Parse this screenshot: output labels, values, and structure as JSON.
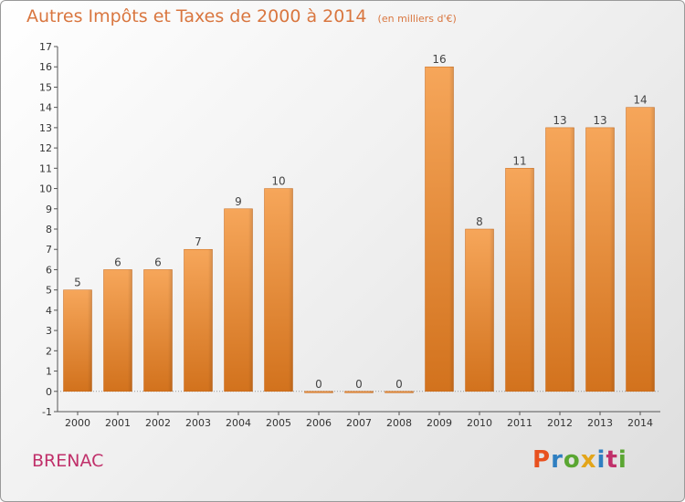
{
  "header": {
    "title": "Autres Impôts et Taxes de 2000 à 2014",
    "unit": "(en milliers d'€)"
  },
  "footer": {
    "commune": "BRENAC",
    "brand": "Proxiti"
  },
  "colors": {
    "title": "#d9763f",
    "commune": "#c0306a",
    "bar_top": "#f6a65a",
    "bar_bottom": "#d2721d",
    "brand_letters": [
      "#e8511f",
      "#2f7fc1",
      "#5aa632",
      "#e3a51a",
      "#2f7fc1",
      "#c0306a",
      "#5aa632"
    ]
  },
  "chart_data": {
    "type": "bar",
    "title": "Autres Impôts et Taxes de 2000 à 2014",
    "xlabel": "",
    "ylabel": "",
    "ylim": [
      -1,
      17
    ],
    "yticks": [
      -1,
      0,
      1,
      2,
      3,
      4,
      5,
      6,
      7,
      8,
      9,
      10,
      11,
      12,
      13,
      14,
      15,
      16,
      17
    ],
    "categories": [
      "2000",
      "2001",
      "2002",
      "2003",
      "2004",
      "2005",
      "2006",
      "2007",
      "2008",
      "2009",
      "2010",
      "2011",
      "2012",
      "2013",
      "2014"
    ],
    "values": [
      5,
      6,
      6,
      7,
      9,
      10,
      0,
      0,
      0,
      16,
      8,
      11,
      13,
      13,
      14
    ],
    "grid": false,
    "legend": "none"
  }
}
